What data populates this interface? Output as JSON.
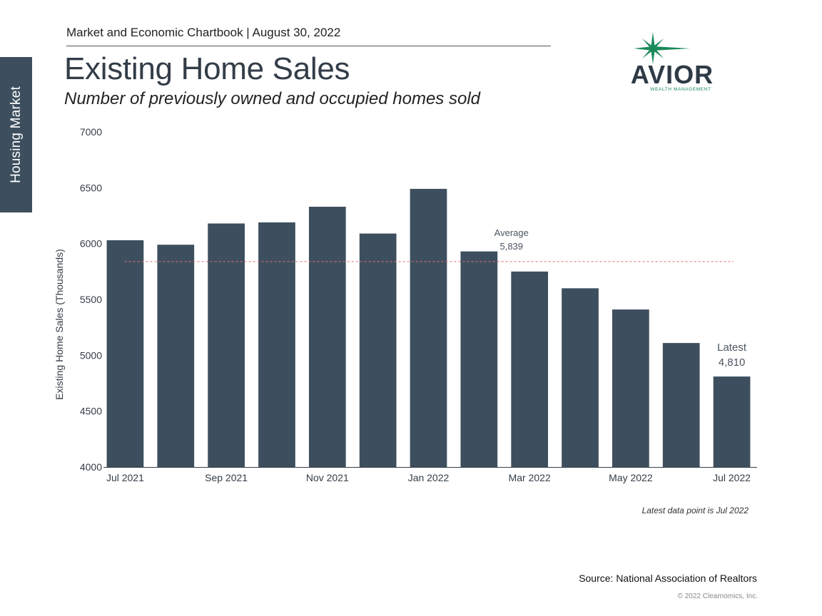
{
  "side_tab": "Housing Market",
  "header": "Market and Economic Chartbook | August 30, 2022",
  "title": "Existing Home Sales",
  "subtitle": "Number of previously owned and occupied homes sold",
  "logo": {
    "name": "AVIOR",
    "tagline": "WEALTH MANAGEMENT"
  },
  "source": "Source: National Association of Realtors",
  "copyright": "© 2022 Clearnomics, Inc.",
  "colors": {
    "bar": "#3d4f5e",
    "average_line": "#e07070",
    "side_tab": "#3d4f5e",
    "logo_green": "#1a8a5a"
  },
  "chart_data": {
    "type": "bar",
    "categories": [
      "Jul 2021",
      "Aug 2021",
      "Sep 2021",
      "Oct 2021",
      "Nov 2021",
      "Dec 2021",
      "Jan 2022",
      "Feb 2022",
      "Mar 2022",
      "Apr 2022",
      "May 2022",
      "Jun 2022",
      "Jul 2022"
    ],
    "x_tick_labels": [
      "Jul 2021",
      "Sep 2021",
      "Nov 2021",
      "Jan 2022",
      "Mar 2022",
      "May 2022",
      "Jul 2022"
    ],
    "values": [
      6030,
      5990,
      6180,
      6190,
      6330,
      6090,
      6490,
      5930,
      5750,
      5600,
      5410,
      5110,
      4810
    ],
    "ylabel": "Existing Home Sales (Thousands)",
    "ylim": [
      4000,
      7000
    ],
    "yticks": [
      4000,
      4500,
      5000,
      5500,
      6000,
      6500,
      7000
    ],
    "average": {
      "label": "Average",
      "value_text": "5,839",
      "value": 5839
    },
    "latest": {
      "label": "Latest",
      "value_text": "4,810"
    },
    "note": "Latest data point is Jul 2022",
    "grid": false
  }
}
